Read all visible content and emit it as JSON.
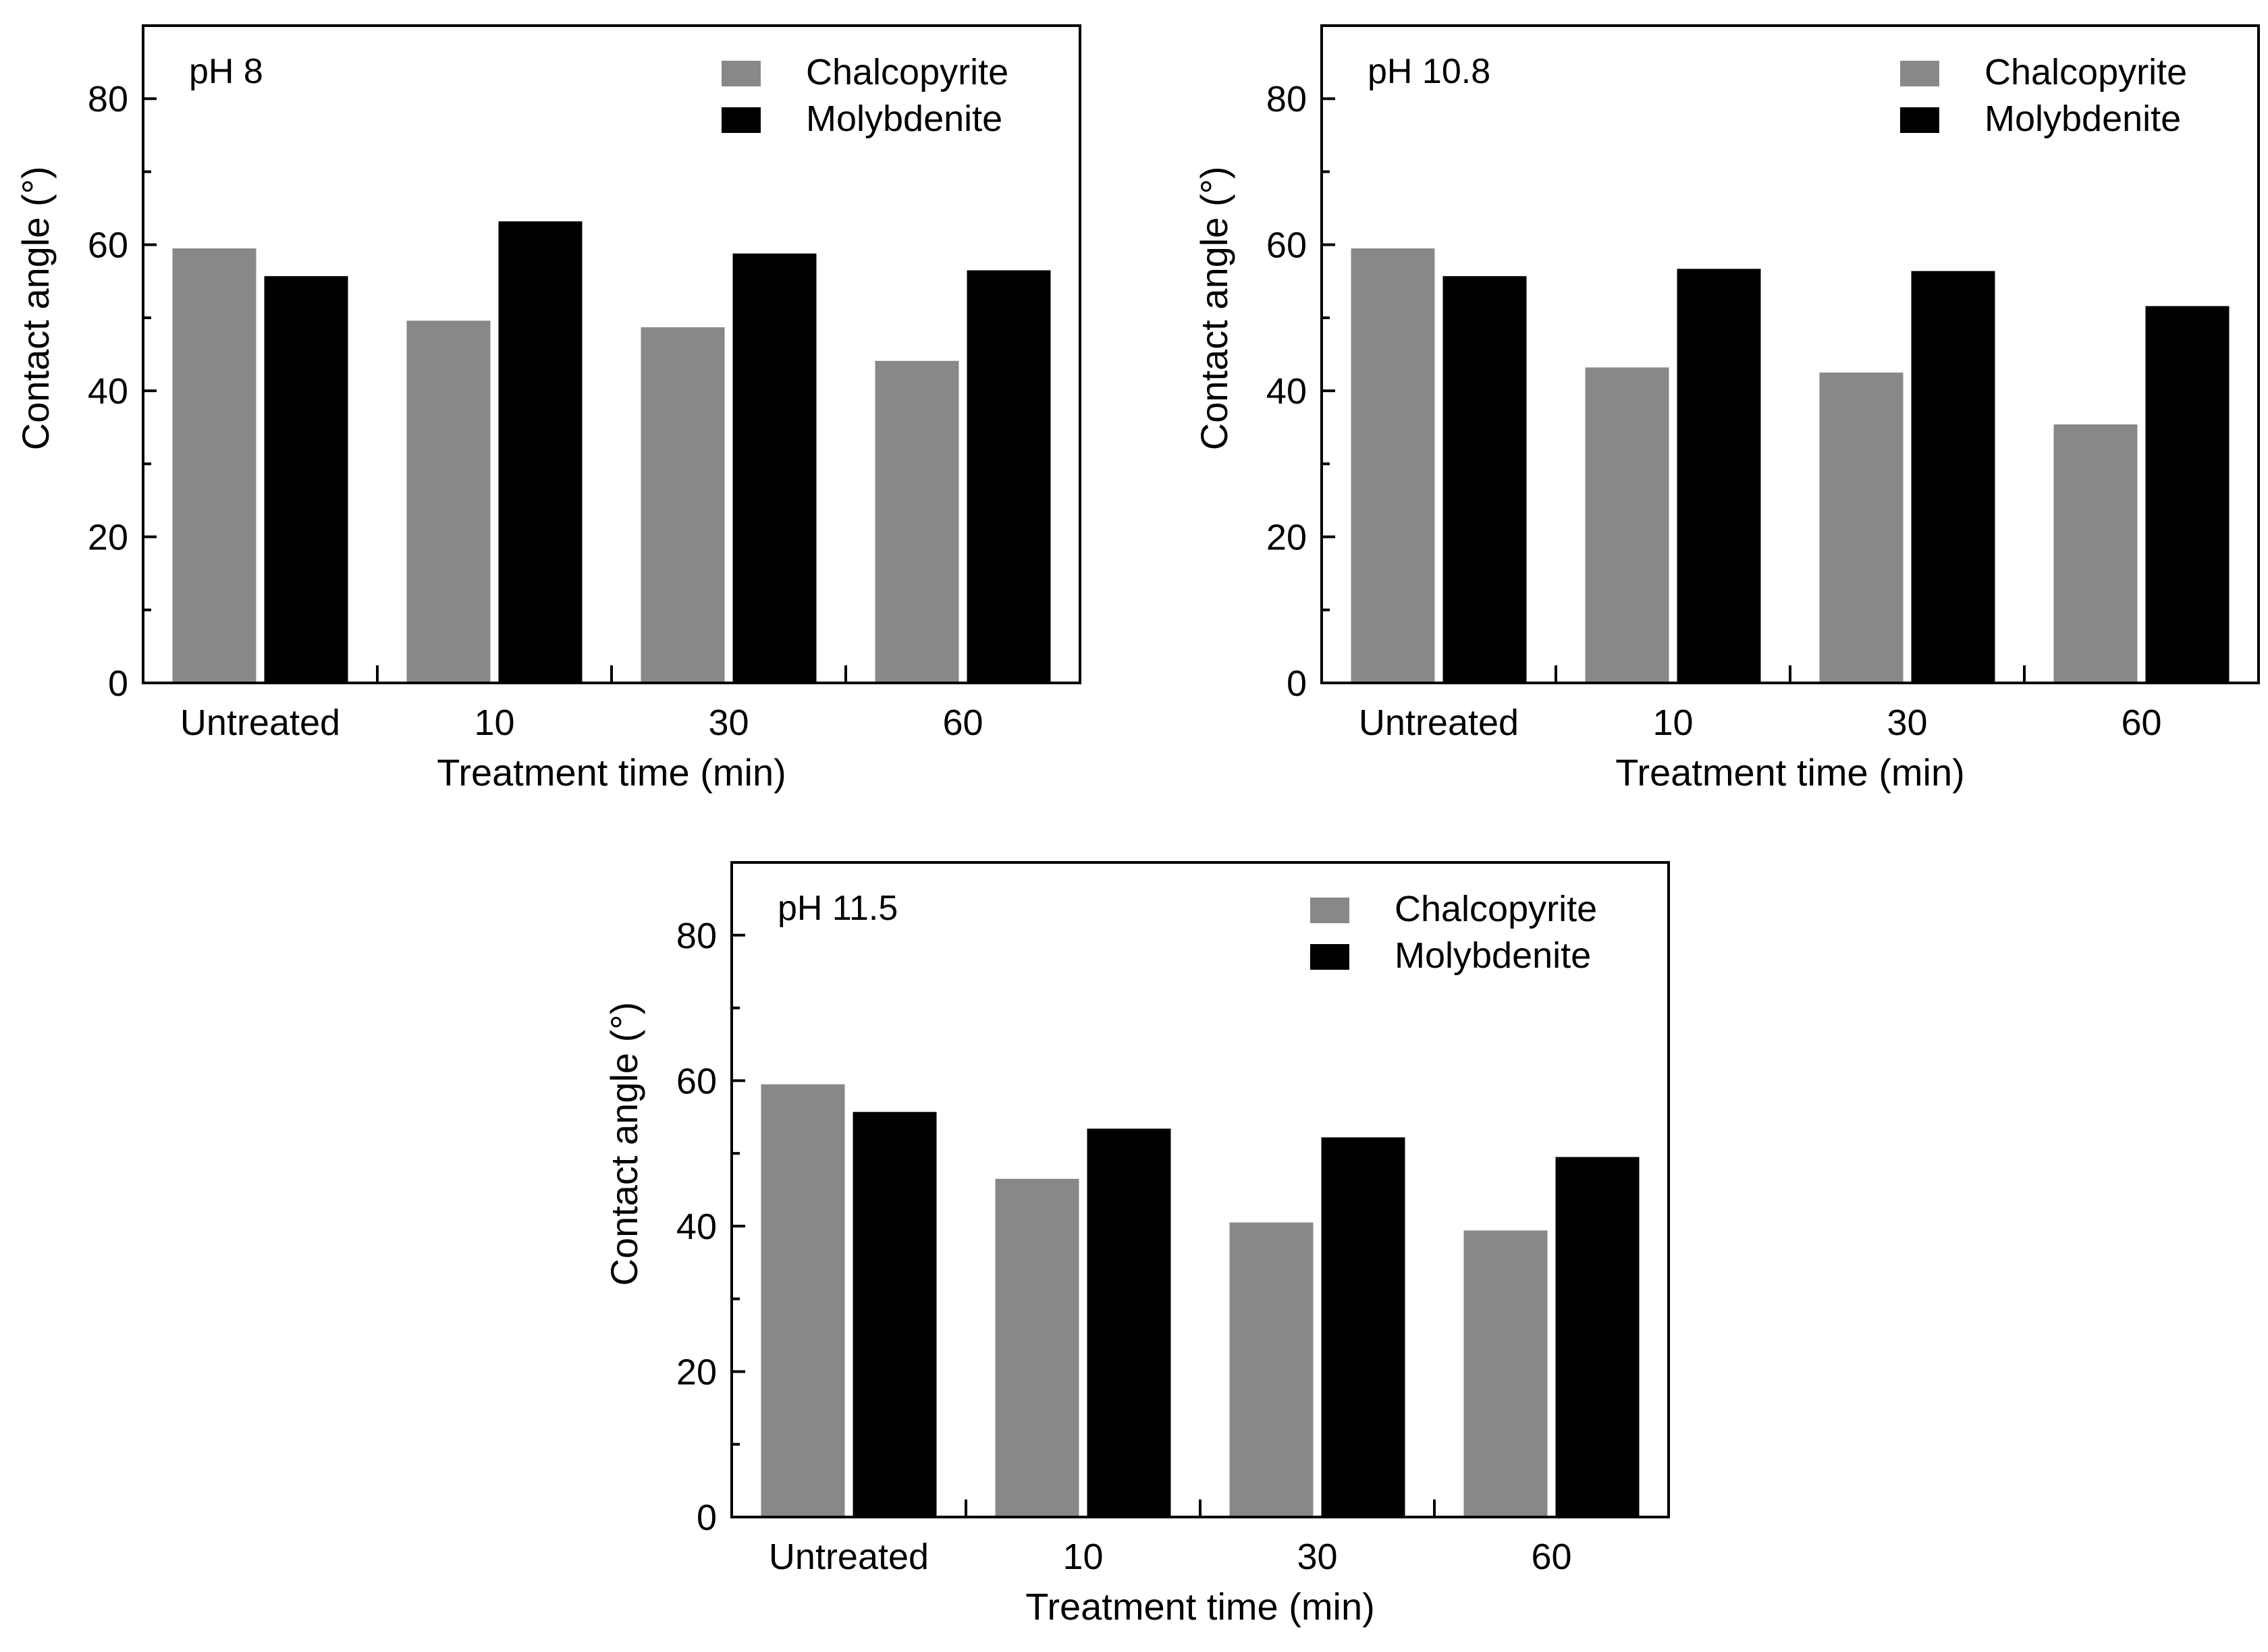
{
  "chart_data": [
    {
      "type": "bar",
      "annotation": "pH 8",
      "xlabel": "Treatment time (min)",
      "ylabel": "Contact angle (°)",
      "categories": [
        "Untreated",
        "10",
        "30",
        "60"
      ],
      "ylim": [
        0,
        90
      ],
      "yticks": [
        0,
        20,
        40,
        60,
        80
      ],
      "legend_position": "top-right",
      "series": [
        {
          "name": "Chalcopyrite",
          "color": "#888888",
          "values": [
            59.5,
            49.6,
            48.7,
            44.1
          ]
        },
        {
          "name": "Molybdenite",
          "color": "#000000",
          "values": [
            55.7,
            63.2,
            58.8,
            56.5
          ]
        }
      ]
    },
    {
      "type": "bar",
      "annotation": "pH 10.8",
      "xlabel": "Treatment time (min)",
      "ylabel": "Contact angle (°)",
      "categories": [
        "Untreated",
        "10",
        "30",
        "60"
      ],
      "ylim": [
        0,
        90
      ],
      "yticks": [
        0,
        20,
        40,
        60,
        80
      ],
      "legend_position": "top-right",
      "series": [
        {
          "name": "Chalcopyrite",
          "color": "#888888",
          "values": [
            59.5,
            43.2,
            42.5,
            35.4
          ]
        },
        {
          "name": "Molybdenite",
          "color": "#000000",
          "values": [
            55.7,
            56.7,
            56.4,
            51.6
          ]
        }
      ]
    },
    {
      "type": "bar",
      "annotation": "pH 11.5",
      "xlabel": "Treatment time (min)",
      "ylabel": "Contact angle (°)",
      "categories": [
        "Untreated",
        "10",
        "30",
        "60"
      ],
      "ylim": [
        0,
        90
      ],
      "yticks": [
        0,
        20,
        40,
        60,
        80
      ],
      "legend_position": "top-right",
      "series": [
        {
          "name": "Chalcopyrite",
          "color": "#888888",
          "values": [
            59.5,
            46.5,
            40.5,
            39.4
          ]
        },
        {
          "name": "Molybdenite",
          "color": "#000000",
          "values": [
            55.7,
            53.4,
            52.2,
            49.5
          ]
        }
      ]
    }
  ]
}
